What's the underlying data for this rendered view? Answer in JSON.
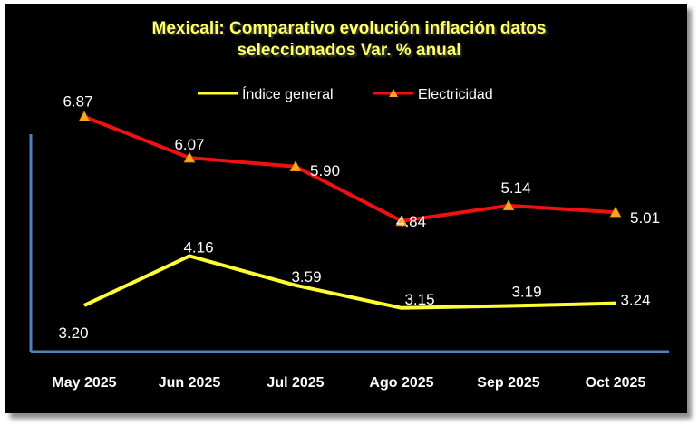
{
  "chart_data": {
    "type": "line",
    "title_line1": "Mexicali: Comparativo evolución inflación datos",
    "title_line2": "seleccionados Var. % anual",
    "categories": [
      "May 2025",
      "Jun 2025",
      "Jul 2025",
      "Ago 2025",
      "Sep 2025",
      "Oct 2025"
    ],
    "series": [
      {
        "name": "Índice general",
        "color": "#FFFF33",
        "marker": "none",
        "values": [
          3.2,
          4.16,
          3.59,
          3.15,
          3.19,
          3.24
        ],
        "labels": [
          "3.20",
          "4.16",
          "3.59",
          "3.15",
          "3.19",
          "3.24"
        ]
      },
      {
        "name": "Electricidad",
        "color": "#EE1111",
        "marker": "triangle",
        "marker_color": "#F5A623",
        "values": [
          6.87,
          6.07,
          5.9,
          4.84,
          5.14,
          5.01
        ],
        "labels": [
          "6.87",
          "6.07",
          "5.90",
          "4.84",
          "5.14",
          "5.01"
        ]
      }
    ],
    "legend_position": "top",
    "ylim": [
      2.3,
      7.2
    ],
    "axis_color": "#4F81BD"
  }
}
